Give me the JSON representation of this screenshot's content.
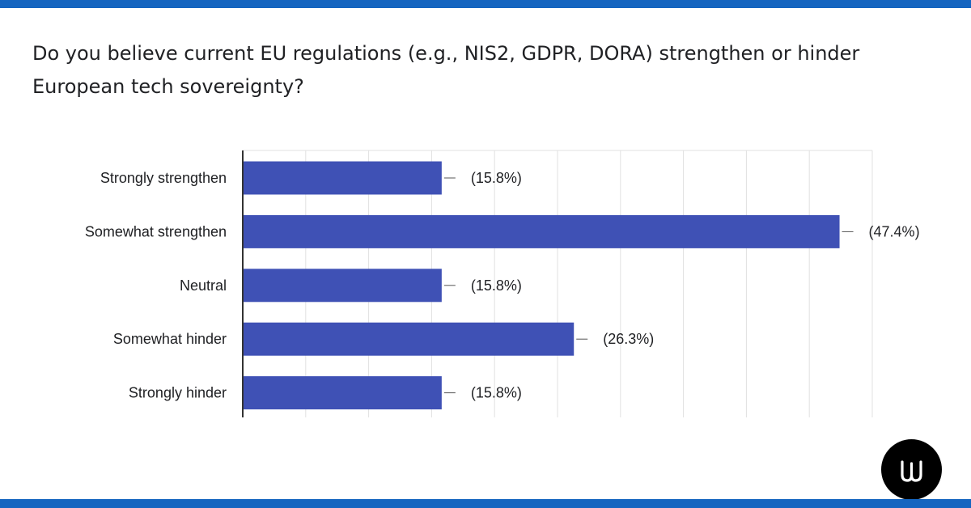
{
  "header": {
    "question": "Do you believe current EU regulations (e.g., NIS2, GDPR, DORA) strengthen or hinder European tech sovereignty?"
  },
  "colors": {
    "accent_band": "#1565c0",
    "bar": "#3f51b5",
    "gridline": "#e0e0e0",
    "axis": "#333333",
    "text": "#202124"
  },
  "logo": {
    "icon": "w-logo-icon"
  },
  "chart_data": {
    "type": "bar",
    "orientation": "horizontal",
    "categories": [
      "Strongly strengthen",
      "Somewhat strengthen",
      "Neutral",
      "Somewhat hinder",
      "Strongly hinder"
    ],
    "values": [
      15.8,
      47.4,
      15.8,
      26.3,
      15.8
    ],
    "data_labels": [
      "(15.8%)",
      "(47.4%)",
      "(15.8%)",
      "(26.3%)",
      "(15.8%)"
    ],
    "xlim": [
      0,
      50
    ],
    "grid": true,
    "legend": "none",
    "color": "#3f51b5"
  }
}
